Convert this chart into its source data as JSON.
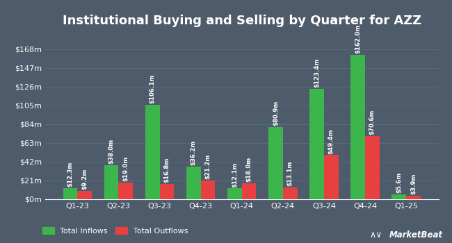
{
  "title": "Institutional Buying and Selling by Quarter for AZZ",
  "categories": [
    "Q1-23",
    "Q2-23",
    "Q3-23",
    "Q4-23",
    "Q1-24",
    "Q2-24",
    "Q3-24",
    "Q4-24",
    "Q1-25"
  ],
  "inflows": [
    12.3,
    38.0,
    106.1,
    36.2,
    12.1,
    80.9,
    123.4,
    162.0,
    5.6
  ],
  "outflows": [
    9.2,
    19.0,
    16.8,
    21.2,
    18.0,
    13.1,
    49.4,
    70.6,
    3.9
  ],
  "inflow_labels": [
    "$12.3m",
    "$38.0m",
    "$106.1m",
    "$36.2m",
    "$12.1m",
    "$80.9m",
    "$123.4m",
    "$162.0m",
    "$5.6m"
  ],
  "outflow_labels": [
    "$9.2m",
    "$19.0m",
    "$16.8m",
    "$21.2m",
    "$18.0m",
    "$13.1m",
    "$49.4m",
    "$70.6m",
    "$3.9m"
  ],
  "inflow_color": "#3cb54a",
  "outflow_color": "#e84040",
  "background_color": "#4d5b6b",
  "grid_color": "#5d6e80",
  "text_color": "#ffffff",
  "bar_label_color": "#ffffff",
  "yticks": [
    0,
    21,
    42,
    63,
    84,
    105,
    126,
    147,
    168
  ],
  "ytick_labels": [
    "$0m",
    "$21m",
    "$42m",
    "$63m",
    "$84m",
    "$105m",
    "$126m",
    "$147m",
    "$168m"
  ],
  "ylim": [
    0,
    185
  ],
  "legend_labels": [
    "Total Inflows",
    "Total Outflows"
  ],
  "bar_width": 0.35,
  "title_fontsize": 13,
  "label_fontsize": 6.2,
  "axis_fontsize": 8,
  "legend_fontsize": 8
}
